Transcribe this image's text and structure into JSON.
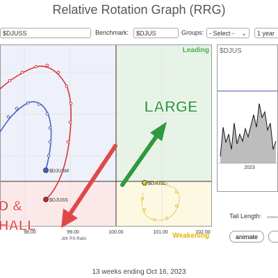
{
  "title": "Relative Rotation Graph (RRG)",
  "toolbar": {
    "symbols_value": "$DJUSS",
    "benchmark_label": "Benchmark:",
    "benchmark_value": "$DJUS",
    "groups_label": "Groups:",
    "groups_value": "- Select -",
    "period_value": "1 year"
  },
  "rrg": {
    "quadrant_leading": "Leading",
    "quadrant_weakening": "Weakening",
    "xlabel": "JdK RS-Ratio",
    "x_ticks": [
      "98.00",
      "99.00",
      "100.00",
      "101.00",
      "102.00"
    ],
    "series": [
      {
        "name": "$DJUSM",
        "color": "#4a5fc1"
      },
      {
        "name": "$DJUSS",
        "color": "#d9343a"
      },
      {
        "name": "$DJUSL",
        "color": "#e0c020"
      }
    ],
    "annotations": {
      "large": "LARGE",
      "left_top": "D &",
      "left_bottom": "HALL"
    },
    "colors": {
      "leading_bg": "#e8f3e8",
      "weakening_bg": "#fdf8e2",
      "lagging_bg": "#fbe9ea",
      "improving_bg": "#eef0fa",
      "green_arrow": "#2e9a3e",
      "red_arrow": "#e04848"
    }
  },
  "mini_chart": {
    "symbol": "$DJUS",
    "x_tick": "2023"
  },
  "controls": {
    "tail_length_label": "Tail Length:",
    "animate_label": "animate"
  },
  "footer": "13 weeks ending Oct 16, 2023"
}
